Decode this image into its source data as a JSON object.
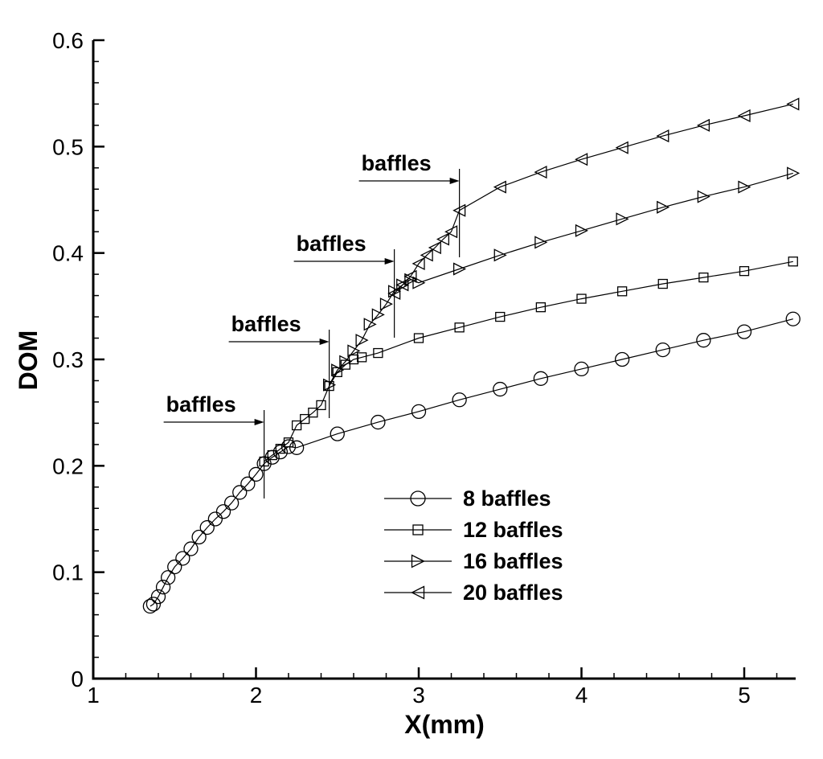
{
  "chart_data": {
    "type": "line",
    "xlabel": "X(mm)",
    "ylabel": "DOM",
    "xlim": [
      1,
      5.35
    ],
    "ylim": [
      0,
      0.6
    ],
    "xticks": [
      1,
      2,
      3,
      4,
      5
    ],
    "yticks": [
      0,
      0.1,
      0.2,
      0.3,
      0.4,
      0.5,
      0.6
    ],
    "xtick_labels": [
      "1",
      "2",
      "3",
      "4",
      "5"
    ],
    "ytick_labels": [
      "0",
      "0.1",
      "0.2",
      "0.3",
      "0.4",
      "0.5",
      "0.6"
    ],
    "grid": false,
    "legend_position": "lower-right",
    "series": [
      {
        "name": "8 baffles",
        "marker": "circle",
        "x": [
          1.35,
          1.37,
          1.4,
          1.43,
          1.46,
          1.5,
          1.55,
          1.6,
          1.65,
          1.7,
          1.75,
          1.8,
          1.85,
          1.9,
          1.95,
          2.0,
          2.05,
          2.1,
          2.15,
          2.2,
          2.25,
          2.5,
          2.75,
          3.0,
          3.25,
          3.5,
          3.75,
          4.0,
          4.25,
          4.5,
          4.75,
          5.0,
          5.3
        ],
        "y": [
          0.068,
          0.07,
          0.077,
          0.086,
          0.095,
          0.105,
          0.113,
          0.122,
          0.133,
          0.142,
          0.15,
          0.157,
          0.165,
          0.175,
          0.183,
          0.192,
          0.202,
          0.208,
          0.213,
          0.218,
          0.217,
          0.23,
          0.241,
          0.251,
          0.262,
          0.272,
          0.282,
          0.291,
          0.3,
          0.309,
          0.318,
          0.326,
          0.338
        ]
      },
      {
        "name": "12 baffles",
        "marker": "square",
        "x": [
          2.05,
          2.1,
          2.15,
          2.2,
          2.25,
          2.3,
          2.35,
          2.4,
          2.45,
          2.5,
          2.55,
          2.6,
          2.65,
          2.75,
          3.0,
          3.25,
          3.5,
          3.75,
          4.0,
          4.25,
          4.5,
          4.75,
          5.0,
          5.3
        ],
        "y": [
          0.204,
          0.21,
          0.216,
          0.222,
          0.238,
          0.244,
          0.25,
          0.257,
          0.275,
          0.288,
          0.295,
          0.3,
          0.302,
          0.306,
          0.32,
          0.33,
          0.34,
          0.349,
          0.357,
          0.364,
          0.371,
          0.377,
          0.383,
          0.392
        ]
      },
      {
        "name": "16 baffles",
        "marker": "triangle-right",
        "x": [
          2.45,
          2.5,
          2.55,
          2.6,
          2.65,
          2.7,
          2.75,
          2.8,
          2.85,
          2.9,
          2.95,
          3.0,
          3.25,
          3.5,
          3.75,
          4.0,
          4.25,
          4.5,
          4.75,
          5.0,
          5.3
        ],
        "y": [
          0.276,
          0.29,
          0.298,
          0.308,
          0.318,
          0.333,
          0.342,
          0.352,
          0.364,
          0.37,
          0.375,
          0.372,
          0.385,
          0.398,
          0.41,
          0.421,
          0.432,
          0.443,
          0.453,
          0.462,
          0.475
        ]
      },
      {
        "name": "20 baffles",
        "marker": "triangle-left",
        "x": [
          2.85,
          2.9,
          2.95,
          3.0,
          3.05,
          3.1,
          3.15,
          3.2,
          3.25,
          3.5,
          3.75,
          4.0,
          4.25,
          4.5,
          4.75,
          5.0,
          5.3
        ],
        "y": [
          0.362,
          0.37,
          0.378,
          0.39,
          0.398,
          0.405,
          0.413,
          0.42,
          0.44,
          0.462,
          0.476,
          0.488,
          0.499,
          0.51,
          0.52,
          0.529,
          0.54
        ]
      }
    ],
    "annotations": [
      {
        "text": "baffles",
        "x": 2.05
      },
      {
        "text": "baffles",
        "x": 2.45
      },
      {
        "text": "baffles",
        "x": 2.85
      },
      {
        "text": "baffles",
        "x": 3.25
      }
    ]
  }
}
